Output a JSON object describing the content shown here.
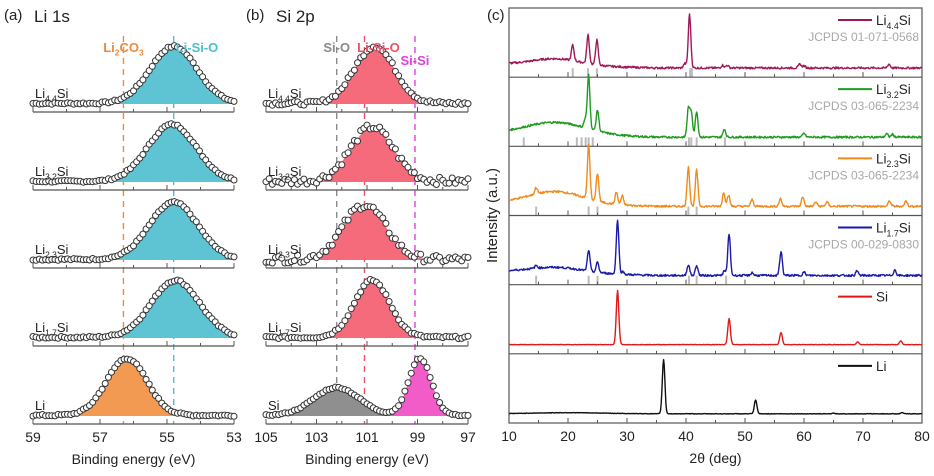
{
  "chart_data": [
    {
      "type": "area",
      "panel_label": "(a)",
      "title": "Li 1s",
      "xlabel": "Binding energy (eV)",
      "ylabel": "",
      "xlim": [
        59,
        53
      ],
      "x_reversed": true,
      "xticks": [
        59,
        57,
        55,
        53
      ],
      "reference_lines": [
        {
          "name": "Li2CO3",
          "label_main": "Li",
          "label_sub": "2",
          "label_rest": "CO",
          "label_sub2": "3",
          "x": 56.3,
          "color": "#ef8a3c"
        },
        {
          "name": "Li-Si-O",
          "label_main": "Li-Si-O",
          "x": 54.8,
          "color": "#4bbfcf"
        }
      ],
      "series": [
        {
          "name": "Li4.4Si",
          "label_main": "Li",
          "label_sub": "4.4",
          "label_rest": "Si",
          "peak_center": 54.8,
          "peak_width": 0.7,
          "peak_height": 0.92,
          "fill": "#5ec4d3",
          "baseline_rise_start": 56.5
        },
        {
          "name": "Li3.2Si",
          "label_main": "Li",
          "label_sub": "3.2",
          "label_rest": "Si",
          "peak_center": 54.85,
          "peak_width": 0.72,
          "peak_height": 0.92,
          "fill": "#5ec4d3",
          "baseline_rise_start": 56.5
        },
        {
          "name": "Li2.3Si",
          "label_main": "Li",
          "label_sub": "2.3",
          "label_rest": "Si",
          "peak_center": 54.8,
          "peak_width": 0.72,
          "peak_height": 0.92,
          "fill": "#5ec4d3",
          "baseline_rise_start": 56.5
        },
        {
          "name": "Li1.7Si",
          "label_main": "Li",
          "label_sub": "1.7",
          "label_rest": "Si",
          "peak_center": 54.75,
          "peak_width": 0.72,
          "peak_height": 0.92,
          "fill": "#5ec4d3",
          "baseline_rise_start": 56.5
        },
        {
          "name": "Li",
          "label_main": "Li",
          "label_sub": "",
          "label_rest": "",
          "peak_center": 56.2,
          "peak_width": 0.6,
          "peak_height": 0.92,
          "fill": "#f39a52",
          "baseline_rise_start": 58
        }
      ]
    },
    {
      "type": "area",
      "panel_label": "(b)",
      "title": "Si 2p",
      "xlabel": "Binding energy (eV)",
      "ylabel": "",
      "xlim": [
        105,
        97
      ],
      "x_reversed": true,
      "xticks": [
        105,
        103,
        101,
        99,
        97
      ],
      "reference_lines": [
        {
          "name": "Si-O",
          "label_main": "Si-O",
          "x": 102.2,
          "color": "#8a8a8a"
        },
        {
          "name": "Li-Si-O",
          "label_main": "Li-Si-O",
          "x": 101.1,
          "color": "#f0506a"
        },
        {
          "name": "Si-Si",
          "label_main": "Si-Si",
          "x": 99.1,
          "color": "#e040e0"
        }
      ],
      "series": [
        {
          "name": "Li4.4Si",
          "label_main": "Li",
          "label_sub": "4.4",
          "label_rest": "Si",
          "peak_center": 100.7,
          "peak_width": 0.8,
          "peak_height": 0.92,
          "fill": "#f56b7c",
          "noise": 0.03
        },
        {
          "name": "Li3.2Si",
          "label_main": "Li",
          "label_sub": "3.2",
          "label_rest": "Si",
          "peak_center": 100.8,
          "peak_width": 0.85,
          "peak_height": 0.88,
          "fill": "#f56b7c",
          "noise": 0.06
        },
        {
          "name": "Li2.3Si",
          "label_main": "Li",
          "label_sub": "2.3",
          "label_rest": "Si",
          "peak_center": 101.1,
          "peak_width": 0.85,
          "peak_height": 0.88,
          "fill": "#f56b7c",
          "noise": 0.06
        },
        {
          "name": "Li1.7Si",
          "label_main": "Li",
          "label_sub": "1.7",
          "label_rest": "Si",
          "peak_center": 100.8,
          "peak_width": 0.7,
          "peak_height": 0.92,
          "fill": "#f56b7c",
          "noise": 0.02
        },
        {
          "name": "Si",
          "label_main": "Si",
          "label_sub": "",
          "label_rest": "",
          "peak_center": 102.2,
          "peak_width": 0.9,
          "peak_height": 0.45,
          "fill": "#8f8f8f",
          "second_peak_center": 98.9,
          "second_peak_width": 0.45,
          "second_peak_height": 0.92,
          "second_fill": "#f25cc8",
          "noise": 0.01
        }
      ]
    },
    {
      "type": "line",
      "panel_label": "(c)",
      "title": "",
      "xlabel": "2θ (deg)",
      "ylabel": "Intensity (a.u.)",
      "xlim": [
        10,
        80
      ],
      "xticks": [
        10,
        20,
        30,
        40,
        50,
        60,
        70,
        80
      ],
      "series": [
        {
          "name": "Li4.4Si",
          "label_main": "Li",
          "label_sub": "4.4",
          "label_rest": "Si",
          "reference": "JCPDS 01-071-0568",
          "color": "#a0185a",
          "peaks": [
            [
              20.8,
              0.28
            ],
            [
              23.4,
              0.52
            ],
            [
              24.9,
              0.45
            ],
            [
              40.6,
              0.98
            ],
            [
              39.8,
              0.08
            ],
            [
              46.2,
              0.05
            ],
            [
              47.0,
              0.05
            ],
            [
              59.3,
              0.07
            ],
            [
              60.0,
              0.04
            ],
            [
              74.4,
              0.07
            ]
          ],
          "hump": [
            18,
            4,
            0.12
          ],
          "ref_sticks": [
            20.8,
            23.4,
            24.9,
            40.7,
            41.0
          ]
        },
        {
          "name": "Li3.2Si",
          "label_main": "Li",
          "label_sub": "3.2",
          "label_rest": "Si",
          "reference": "JCPDS 03-065-2234",
          "color": "#1f9a1f",
          "peaks": [
            [
              22.9,
              0.15
            ],
            [
              23.5,
              0.98
            ],
            [
              25.0,
              0.38
            ],
            [
              40.4,
              0.52
            ],
            [
              40.9,
              0.45
            ],
            [
              41.8,
              0.47
            ],
            [
              46.5,
              0.15
            ],
            [
              60.0,
              0.07
            ],
            [
              74.0,
              0.06
            ],
            [
              75.0,
              0.05
            ]
          ],
          "hump": [
            18,
            5,
            0.22
          ],
          "ref_sticks": [
            12.5,
            21.5,
            22.3,
            23.0,
            23.5,
            24.2,
            40.5,
            40.9,
            41.8,
            46.6
          ]
        },
        {
          "name": "Li2.3Si",
          "label_main": "Li",
          "label_sub": "2.3",
          "label_rest": "Si",
          "reference": "JCPDS 03-065-2234",
          "color": "#f08a1c",
          "peaks": [
            [
              14.6,
              0.12
            ],
            [
              23.5,
              0.98
            ],
            [
              25.0,
              0.5
            ],
            [
              28.2,
              0.22
            ],
            [
              29.2,
              0.16
            ],
            [
              40.4,
              0.72
            ],
            [
              41.8,
              0.66
            ],
            [
              46.4,
              0.25
            ],
            [
              47.2,
              0.2
            ],
            [
              51.2,
              0.12
            ],
            [
              56.0,
              0.14
            ],
            [
              59.8,
              0.17
            ],
            [
              62.0,
              0.08
            ],
            [
              63.9,
              0.08
            ],
            [
              74.5,
              0.1
            ],
            [
              77.3,
              0.1
            ]
          ],
          "hump": [
            18,
            4.5,
            0.22
          ],
          "ref_sticks": [
            14.6,
            23.5,
            25.0,
            40.4,
            41.8
          ]
        },
        {
          "name": "Li1.7Si",
          "label_main": "Li",
          "label_sub": "1.7",
          "label_rest": "Si",
          "reference": "JCPDS 00-029-0830",
          "color": "#1a1aaa",
          "peaks": [
            [
              14.6,
              0.05
            ],
            [
              23.5,
              0.38
            ],
            [
              25.0,
              0.18
            ],
            [
              28.4,
              0.98
            ],
            [
              29.3,
              0.05
            ],
            [
              40.4,
              0.2
            ],
            [
              41.8,
              0.18
            ],
            [
              46.5,
              0.08
            ],
            [
              47.3,
              0.75
            ],
            [
              51.2,
              0.05
            ],
            [
              56.1,
              0.43
            ],
            [
              60.0,
              0.06
            ],
            [
              69.0,
              0.08
            ],
            [
              75.4,
              0.1
            ]
          ],
          "hump": [
            18,
            4.5,
            0.1
          ],
          "ref_sticks": [
            14.6,
            23.5,
            25.0,
            40.5,
            41.8,
            46.8
          ]
        },
        {
          "name": "Si",
          "label_main": "Si",
          "label_sub": "",
          "label_rest": "",
          "reference": "",
          "color": "#e01818",
          "peaks": [
            [
              28.4,
              0.98
            ],
            [
              47.3,
              0.47
            ],
            [
              56.1,
              0.22
            ],
            [
              69.1,
              0.05
            ],
            [
              76.4,
              0.07
            ]
          ],
          "hump": [
            18,
            4,
            0.0
          ],
          "ref_sticks": []
        },
        {
          "name": "Li",
          "label_main": "Li",
          "label_sub": "",
          "label_rest": "",
          "reference": "",
          "color": "#111111",
          "peaks": [
            [
              36.2,
              0.98
            ],
            [
              51.8,
              0.25
            ],
            [
              65.0,
              0.01
            ],
            [
              76.6,
              0.02
            ]
          ],
          "hump": [
            20,
            6,
            0.02
          ],
          "ref_sticks": []
        }
      ]
    }
  ]
}
